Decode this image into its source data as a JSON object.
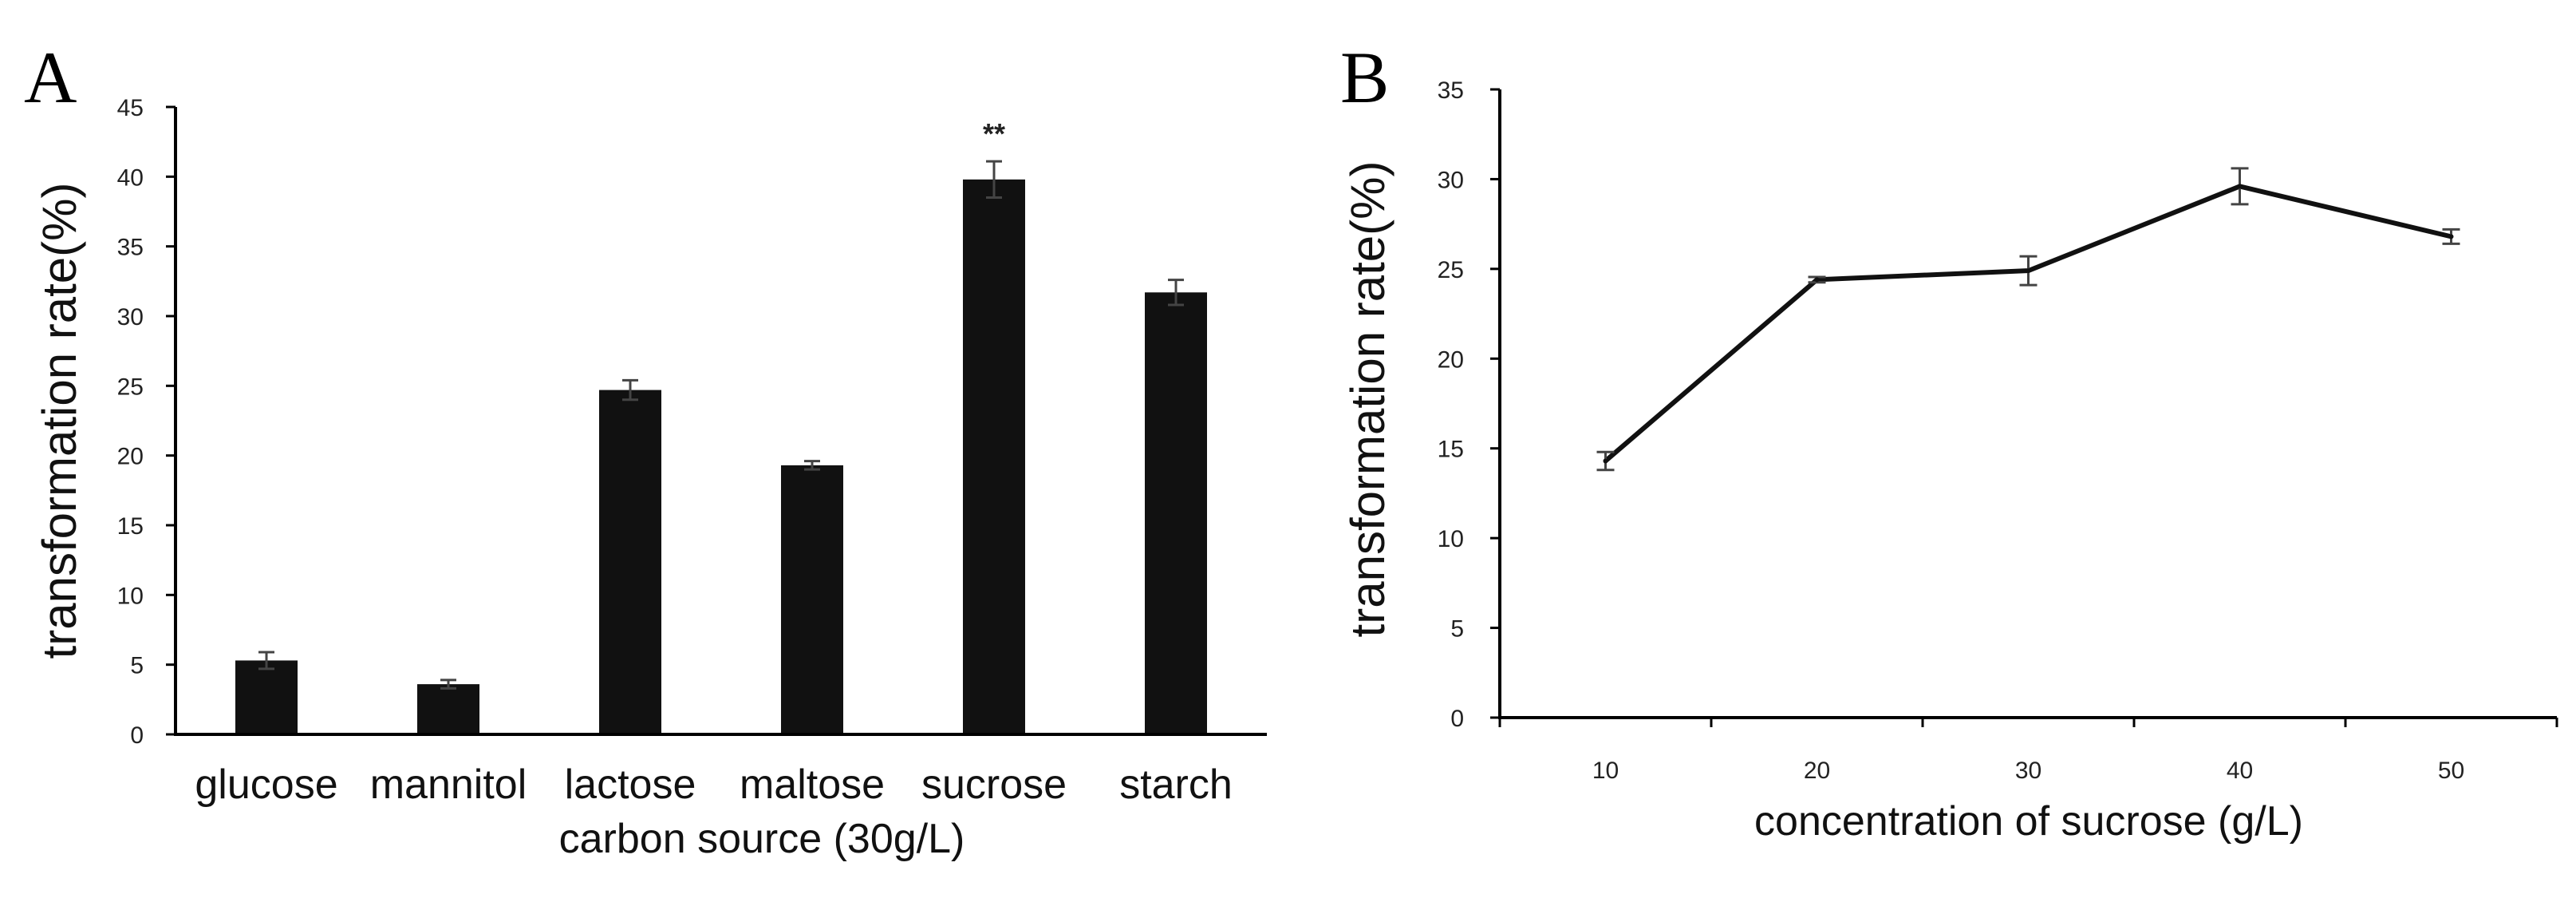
{
  "chart_data": [
    {
      "panel_label": "A",
      "type": "bar",
      "title": "",
      "xlabel": "carbon source (30g/L)",
      "ylabel": "transformation rate(%)",
      "ylim": [
        0,
        45
      ],
      "yticks": [
        0,
        5,
        10,
        15,
        20,
        25,
        30,
        35,
        40,
        45
      ],
      "categories": [
        "glucose",
        "mannitol",
        "lactose",
        "maltose",
        "sucrose",
        "starch"
      ],
      "values": [
        5.3,
        3.6,
        24.7,
        19.3,
        39.8,
        31.7
      ],
      "errors": [
        0.6,
        0.3,
        0.7,
        0.3,
        1.3,
        0.9
      ],
      "annotations": [
        {
          "category": "sucrose",
          "text": "**"
        }
      ],
      "grid": false
    },
    {
      "panel_label": "B",
      "type": "line",
      "title": "",
      "xlabel": "concentration of sucrose (g/L)",
      "ylabel": "transformation rate(%)",
      "ylim": [
        0,
        35
      ],
      "yticks": [
        0,
        5,
        10,
        15,
        20,
        25,
        30,
        35
      ],
      "x": [
        10,
        20,
        30,
        40,
        50
      ],
      "values": [
        14.3,
        24.4,
        24.9,
        29.6,
        26.8
      ],
      "errors": [
        0.5,
        0.15,
        0.8,
        1.0,
        0.4
      ],
      "grid": false
    }
  ]
}
